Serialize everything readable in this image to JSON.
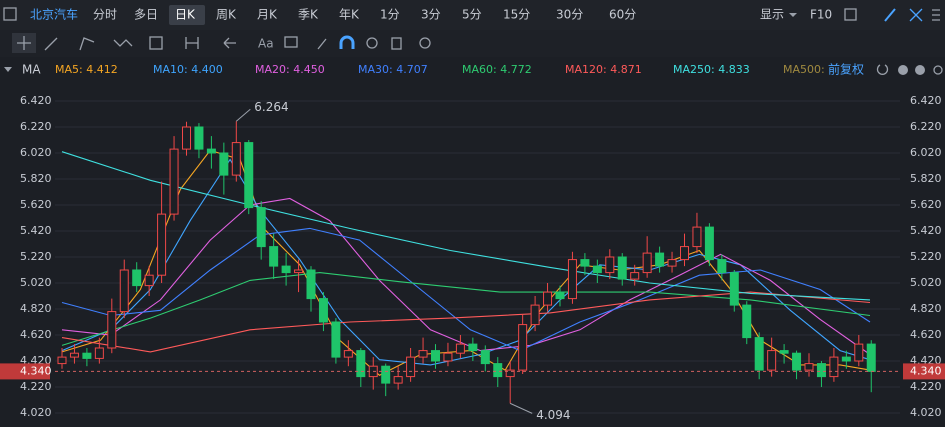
{
  "toolbar": {
    "symbol": "北京汽车",
    "periods": [
      "分时",
      "多日",
      "日K",
      "周K",
      "月K",
      "季K",
      "年K",
      "1分",
      "3分",
      "5分",
      "15分",
      "30分",
      "60分"
    ],
    "active": "日K",
    "display": "显示",
    "f10": "F10"
  },
  "chart_data": {
    "type": "candlestick",
    "indicator": "MA",
    "adjust": "前复权",
    "up_color": "#f04848",
    "down_color": "#1fc46a",
    "ylim": [
      4.02,
      6.42
    ],
    "yticks": [
      {
        "value": 6.42,
        "label": "6.420"
      },
      {
        "value": 6.22,
        "label": "6.220"
      },
      {
        "value": 6.02,
        "label": "6.020"
      },
      {
        "value": 5.82,
        "label": "5.820"
      },
      {
        "value": 5.62,
        "label": "5.620"
      },
      {
        "value": 5.42,
        "label": "5.420"
      },
      {
        "value": 5.22,
        "label": "5.220"
      },
      {
        "value": 5.02,
        "label": "5.020"
      },
      {
        "value": 4.82,
        "label": "4.820"
      },
      {
        "value": 4.62,
        "label": "4.620"
      },
      {
        "value": 4.42,
        "label": "4.420"
      },
      {
        "value": 4.22,
        "label": "4.220"
      },
      {
        "value": 4.02,
        "label": "4.020"
      }
    ],
    "current": {
      "value": 4.34,
      "label": "4.340"
    },
    "annotations": [
      "6.264",
      "4.094"
    ],
    "candles": [
      [
        4.4,
        4.52,
        4.36,
        4.45
      ],
      [
        4.45,
        4.55,
        4.4,
        4.48
      ],
      [
        4.48,
        4.52,
        4.38,
        4.44
      ],
      [
        4.44,
        4.6,
        4.4,
        4.52
      ],
      [
        4.52,
        4.9,
        4.48,
        4.8
      ],
      [
        4.8,
        5.2,
        4.75,
        5.12
      ],
      [
        5.12,
        5.18,
        4.95,
        5.0
      ],
      [
        5.0,
        5.15,
        4.92,
        5.08
      ],
      [
        5.08,
        5.8,
        5.02,
        5.55
      ],
      [
        5.55,
        6.15,
        5.5,
        6.05
      ],
      [
        6.05,
        6.26,
        6.0,
        6.22
      ],
      [
        6.22,
        6.25,
        5.98,
        6.05
      ],
      [
        6.05,
        6.15,
        5.9,
        6.02
      ],
      [
        6.02,
        6.1,
        5.7,
        5.85
      ],
      [
        5.85,
        6.264,
        5.8,
        6.1
      ],
      [
        6.1,
        6.12,
        5.55,
        5.6
      ],
      [
        5.6,
        5.65,
        5.2,
        5.3
      ],
      [
        5.3,
        5.4,
        5.05,
        5.15
      ],
      [
        5.15,
        5.25,
        5.0,
        5.1
      ],
      [
        5.1,
        5.2,
        4.95,
        5.12
      ],
      [
        5.12,
        5.15,
        4.8,
        4.9
      ],
      [
        4.9,
        4.95,
        4.65,
        4.72
      ],
      [
        4.72,
        4.75,
        4.4,
        4.45
      ],
      [
        4.45,
        4.58,
        4.38,
        4.5
      ],
      [
        4.5,
        4.52,
        4.22,
        4.3
      ],
      [
        4.3,
        4.45,
        4.2,
        4.38
      ],
      [
        4.38,
        4.4,
        4.15,
        4.25
      ],
      [
        4.25,
        4.38,
        4.2,
        4.3
      ],
      [
        4.3,
        4.52,
        4.26,
        4.45
      ],
      [
        4.45,
        4.6,
        4.4,
        4.5
      ],
      [
        4.5,
        4.55,
        4.36,
        4.42
      ],
      [
        4.42,
        4.56,
        4.38,
        4.48
      ],
      [
        4.48,
        4.62,
        4.44,
        4.55
      ],
      [
        4.55,
        4.6,
        4.42,
        4.5
      ],
      [
        4.5,
        4.54,
        4.34,
        4.4
      ],
      [
        4.4,
        4.45,
        4.22,
        4.3
      ],
      [
        4.3,
        4.42,
        4.094,
        4.35
      ],
      [
        4.35,
        4.78,
        4.32,
        4.7
      ],
      [
        4.7,
        4.92,
        4.65,
        4.85
      ],
      [
        4.85,
        5.02,
        4.8,
        4.95
      ],
      [
        4.95,
        5.0,
        4.84,
        4.9
      ],
      [
        4.9,
        5.26,
        4.86,
        5.2
      ],
      [
        5.2,
        5.25,
        5.08,
        5.15
      ],
      [
        5.15,
        5.2,
        5.02,
        5.1
      ],
      [
        5.1,
        5.28,
        5.05,
        5.22
      ],
      [
        5.22,
        5.25,
        5.0,
        5.05
      ],
      [
        5.05,
        5.16,
        5.0,
        5.1
      ],
      [
        5.1,
        5.38,
        5.06,
        5.25
      ],
      [
        5.25,
        5.3,
        5.1,
        5.15
      ],
      [
        5.15,
        5.26,
        5.1,
        5.2
      ],
      [
        5.2,
        5.4,
        5.15,
        5.3
      ],
      [
        5.3,
        5.56,
        5.25,
        5.45
      ],
      [
        5.45,
        5.48,
        5.15,
        5.2
      ],
      [
        5.2,
        5.24,
        5.04,
        5.1
      ],
      [
        5.1,
        5.12,
        4.8,
        4.85
      ],
      [
        4.85,
        4.88,
        4.55,
        4.6
      ],
      [
        4.6,
        4.64,
        4.28,
        4.35
      ],
      [
        4.35,
        4.6,
        4.3,
        4.5
      ],
      [
        4.5,
        4.55,
        4.4,
        4.48
      ],
      [
        4.48,
        4.5,
        4.28,
        4.35
      ],
      [
        4.35,
        4.48,
        4.3,
        4.4
      ],
      [
        4.4,
        4.42,
        4.22,
        4.3
      ],
      [
        4.3,
        4.52,
        4.26,
        4.45
      ],
      [
        4.45,
        4.5,
        4.36,
        4.42
      ],
      [
        4.42,
        4.62,
        4.38,
        4.55
      ],
      [
        4.55,
        4.58,
        4.18,
        4.34
      ]
    ],
    "series": [
      {
        "name": "MA5:",
        "last": 4.412,
        "color": "#f5a623",
        "x": [
          0,
          3.1,
          6.3,
          9.5,
          11.9,
          14.3,
          16.3,
          19.1,
          22.3,
          25.5,
          28.8,
          32.8,
          35.6,
          38.4,
          41.6,
          44.8,
          48,
          51.2,
          53.7,
          56.1,
          59.3,
          62.5,
          64.9
        ],
        "values": [
          4.49,
          4.58,
          4.97,
          5.74,
          6.04,
          5.97,
          5.43,
          5.16,
          4.58,
          4.31,
          4.47,
          4.5,
          4.35,
          4.81,
          5.16,
          5.12,
          5.16,
          5.27,
          4.97,
          4.58,
          4.39,
          4.39,
          4.35
        ]
      },
      {
        "name": "MA10:",
        "last": 4.4,
        "value_label": "4.400",
        "color": "#3fa5ff",
        "x": [
          0,
          3.9,
          7.1,
          10.3,
          13.5,
          15.9,
          19.1,
          22.3,
          25.5,
          29.6,
          33.6,
          36.8,
          40,
          43.2,
          47.2,
          51.2,
          54.5,
          58.5,
          62.5,
          64.9
        ],
        "values": [
          4.5,
          4.66,
          4.97,
          5.5,
          5.97,
          5.58,
          5.2,
          4.74,
          4.43,
          4.39,
          4.47,
          4.58,
          4.89,
          5.16,
          5.12,
          5.24,
          5.16,
          4.81,
          4.5,
          4.43
        ]
      },
      {
        "name": "MA20:",
        "last": 4.45,
        "value_label": "4.450",
        "color": "#e060e0",
        "x": [
          0,
          3.9,
          7.9,
          11.9,
          15.1,
          18.3,
          21.5,
          25.5,
          29.6,
          33.6,
          37.6,
          41.6,
          45.6,
          49.6,
          52.9,
          56.9,
          60.9,
          64.9
        ],
        "values": [
          4.66,
          4.62,
          4.89,
          5.35,
          5.62,
          5.67,
          5.5,
          5.04,
          4.66,
          4.5,
          4.54,
          4.66,
          4.89,
          5.08,
          5.24,
          5.04,
          4.74,
          4.47
        ]
      },
      {
        "name": "MA30:",
        "last": 4.707,
        "color": "#4080ff",
        "x": [
          0,
          3.9,
          7.9,
          11.9,
          15.9,
          19.9,
          23.9,
          28.8,
          32.8,
          36.8,
          41.6,
          46.4,
          51.2,
          56.1,
          60.9,
          64.9
        ],
        "values": [
          4.87,
          4.77,
          4.81,
          5.12,
          5.39,
          5.44,
          5.35,
          4.97,
          4.66,
          4.5,
          4.72,
          4.89,
          5.08,
          5.12,
          4.97,
          4.72
        ]
      },
      {
        "name": "MA60:",
        "last": 4.772,
        "color": "#2ecc71",
        "x": [
          0,
          7.1,
          11.1,
          15.1,
          20.7,
          27.1,
          35.2,
          40,
          47.2,
          55.3,
          64.9
        ],
        "values": [
          4.54,
          4.75,
          4.89,
          5.04,
          5.1,
          5.03,
          4.95,
          4.95,
          4.95,
          4.89,
          4.77
        ]
      },
      {
        "name": "MA120:",
        "last": 4.871,
        "color": "#ff5a5a",
        "x": [
          0,
          7.1,
          15.1,
          23.1,
          31.2,
          39.2,
          47.2,
          55.3,
          64.9
        ],
        "values": [
          4.6,
          4.49,
          4.66,
          4.72,
          4.75,
          4.79,
          4.89,
          4.95,
          4.87
        ]
      },
      {
        "name": "MA250:",
        "last": 4.833,
        "color": "#3fe0e0",
        "x": [
          0,
          7.1,
          15.1,
          23.1,
          31.2,
          39.2,
          47.2,
          55.3,
          64.9
        ],
        "values": [
          6.03,
          5.81,
          5.62,
          5.44,
          5.27,
          5.14,
          5.02,
          4.94,
          4.89
        ]
      },
      {
        "name": "MA500:",
        "color": "#a08a40",
        "x": [],
        "values": []
      }
    ]
  }
}
